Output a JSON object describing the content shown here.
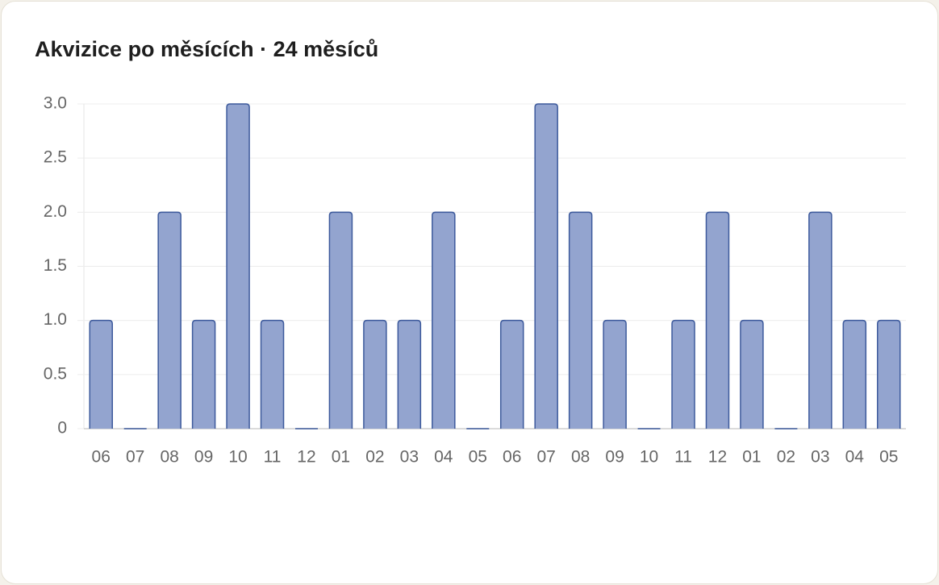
{
  "chart_data": {
    "type": "bar",
    "title": "Akvizice po měsících · 24 měsíců",
    "categories": [
      "06",
      "07",
      "08",
      "09",
      "10",
      "11",
      "12",
      "01",
      "02",
      "03",
      "04",
      "05",
      "06",
      "07",
      "08",
      "09",
      "10",
      "11",
      "12",
      "01",
      "02",
      "03",
      "04",
      "05"
    ],
    "values": [
      1,
      0,
      2,
      1,
      3,
      1,
      0,
      2,
      1,
      1,
      2,
      0,
      1,
      3,
      2,
      1,
      0,
      1,
      2,
      1,
      0,
      2,
      1,
      1
    ],
    "color": "#93a4cf",
    "border_color": "#3d5a9c",
    "ylim": [
      0,
      3
    ],
    "yticks": [
      0,
      0.5,
      {
        "value": 1,
        "label": "1.0"
      },
      1.5,
      {
        "value": 2,
        "label": "2.0"
      },
      2.5,
      {
        "value": 3,
        "label": "3.0"
      }
    ],
    "grid": true
  }
}
